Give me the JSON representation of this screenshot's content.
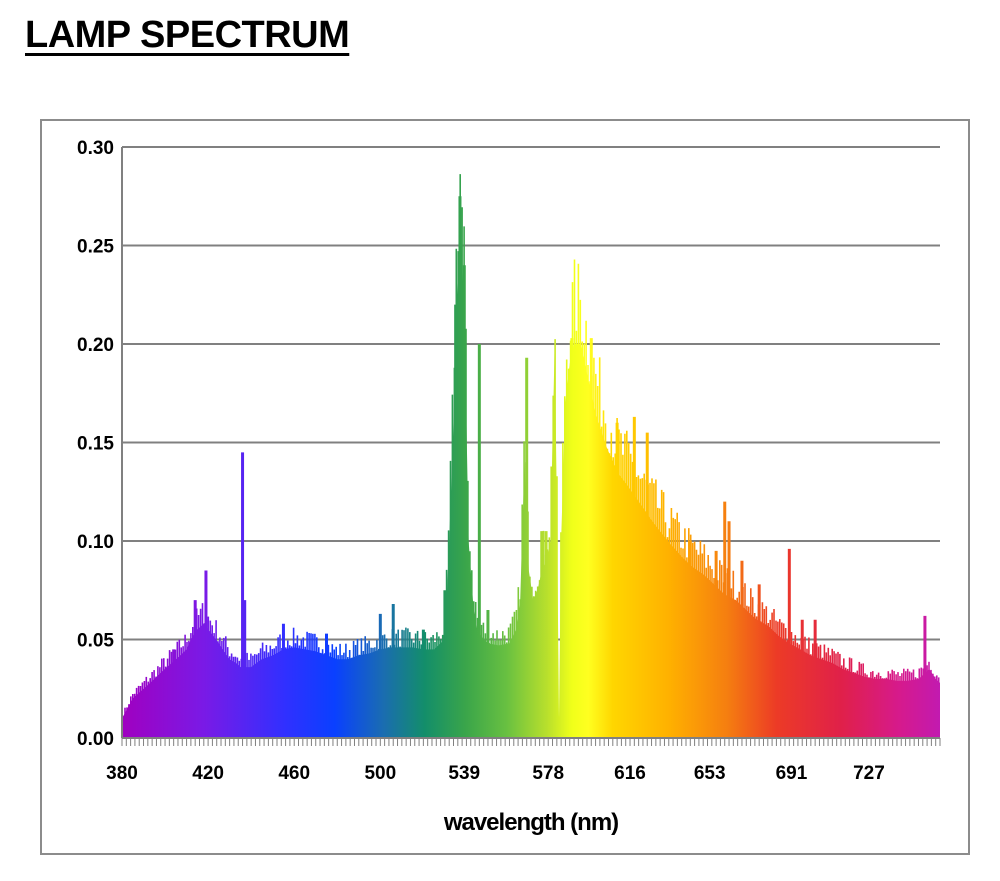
{
  "page": {
    "title": "LAMP SPECTRUM"
  },
  "chart_data": {
    "type": "area",
    "title": "LAMP SPECTRUM",
    "xlabel": "wavelength (nm)",
    "ylabel": "",
    "xlim": [
      380,
      760
    ],
    "ylim": [
      0,
      0.3
    ],
    "yticks": [
      "0.00",
      "0.05",
      "0.10",
      "0.15",
      "0.20",
      "0.25",
      "0.30"
    ],
    "xtick_labels": [
      "380",
      "420",
      "460",
      "500",
      "539",
      "578",
      "616",
      "653",
      "691",
      "727"
    ],
    "xtick_values": [
      380,
      420,
      460,
      500,
      539,
      578,
      616,
      653,
      691,
      727
    ],
    "grid": "horizontal",
    "legend": "none",
    "colors": {
      "grid": "#808080",
      "frame": "#8c8c8c",
      "axis": "#808080"
    },
    "series": [
      {
        "x": [
          380,
          385,
          390,
          395,
          400,
          405,
          410,
          412,
          415,
          418,
          420,
          425,
          430,
          433,
          435,
          440,
          445,
          450,
          455,
          460,
          465,
          470,
          475,
          480,
          485,
          490,
          495,
          500,
          505,
          510,
          515,
          520,
          525,
          530,
          532,
          534,
          535,
          537,
          539,
          541,
          543,
          545,
          548,
          550,
          555,
          560,
          563,
          565,
          567,
          569,
          571,
          573,
          575,
          577,
          579,
          580,
          581,
          582,
          583,
          584,
          586,
          588,
          590,
          593,
          596,
          600,
          605,
          610,
          615,
          620,
          625,
          630,
          635,
          640,
          645,
          650,
          655,
          660,
          665,
          670,
          675,
          680,
          685,
          690,
          695,
          700,
          705,
          710,
          715,
          720,
          725,
          730,
          735,
          740,
          745,
          750,
          755,
          758,
          760
        ],
        "y": [
          0.01,
          0.02,
          0.025,
          0.03,
          0.035,
          0.04,
          0.045,
          0.05,
          0.055,
          0.058,
          0.055,
          0.048,
          0.04,
          0.038,
          0.036,
          0.036,
          0.04,
          0.042,
          0.045,
          0.046,
          0.045,
          0.044,
          0.042,
          0.04,
          0.04,
          0.042,
          0.043,
          0.045,
          0.046,
          0.046,
          0.046,
          0.045,
          0.045,
          0.05,
          0.1,
          0.16,
          0.21,
          0.26,
          0.22,
          0.1,
          0.07,
          0.055,
          0.05,
          0.048,
          0.047,
          0.048,
          0.055,
          0.07,
          0.14,
          0.085,
          0.07,
          0.075,
          0.085,
          0.09,
          0.1,
          0.15,
          0.2,
          0.12,
          0.01,
          0.1,
          0.17,
          0.19,
          0.2,
          0.2,
          0.185,
          0.165,
          0.148,
          0.135,
          0.128,
          0.12,
          0.112,
          0.105,
          0.098,
          0.092,
          0.087,
          0.083,
          0.078,
          0.073,
          0.07,
          0.065,
          0.06,
          0.057,
          0.052,
          0.048,
          0.045,
          0.042,
          0.04,
          0.038,
          0.035,
          0.033,
          0.031,
          0.03,
          0.03,
          0.029,
          0.029,
          0.03,
          0.035,
          0.03,
          0.028
        ]
      }
    ],
    "spikes": [
      {
        "x": 404,
        "y": 0.045
      },
      {
        "x": 414,
        "y": 0.07
      },
      {
        "x": 419,
        "y": 0.085
      },
      {
        "x": 436,
        "y": 0.145
      },
      {
        "x": 437,
        "y": 0.07
      },
      {
        "x": 455,
        "y": 0.058
      },
      {
        "x": 475,
        "y": 0.053
      },
      {
        "x": 500,
        "y": 0.063
      },
      {
        "x": 506,
        "y": 0.068
      },
      {
        "x": 520,
        "y": 0.055
      },
      {
        "x": 530,
        "y": 0.075
      },
      {
        "x": 535,
        "y": 0.22
      },
      {
        "x": 537,
        "y": 0.275
      },
      {
        "x": 539,
        "y": 0.24
      },
      {
        "x": 546,
        "y": 0.2
      },
      {
        "x": 550,
        "y": 0.065
      },
      {
        "x": 568,
        "y": 0.193
      },
      {
        "x": 575,
        "y": 0.105
      },
      {
        "x": 577,
        "y": 0.105
      },
      {
        "x": 589,
        "y": 0.203
      },
      {
        "x": 598,
        "y": 0.203
      },
      {
        "x": 610,
        "y": 0.16
      },
      {
        "x": 618,
        "y": 0.163
      },
      {
        "x": 624,
        "y": 0.155
      },
      {
        "x": 632,
        "y": 0.1
      },
      {
        "x": 644,
        "y": 0.1
      },
      {
        "x": 656,
        "y": 0.095
      },
      {
        "x": 660,
        "y": 0.12
      },
      {
        "x": 662,
        "y": 0.11
      },
      {
        "x": 668,
        "y": 0.09
      },
      {
        "x": 676,
        "y": 0.078
      },
      {
        "x": 690,
        "y": 0.096
      },
      {
        "x": 696,
        "y": 0.06
      },
      {
        "x": 702,
        "y": 0.06
      },
      {
        "x": 753,
        "y": 0.062
      }
    ]
  }
}
